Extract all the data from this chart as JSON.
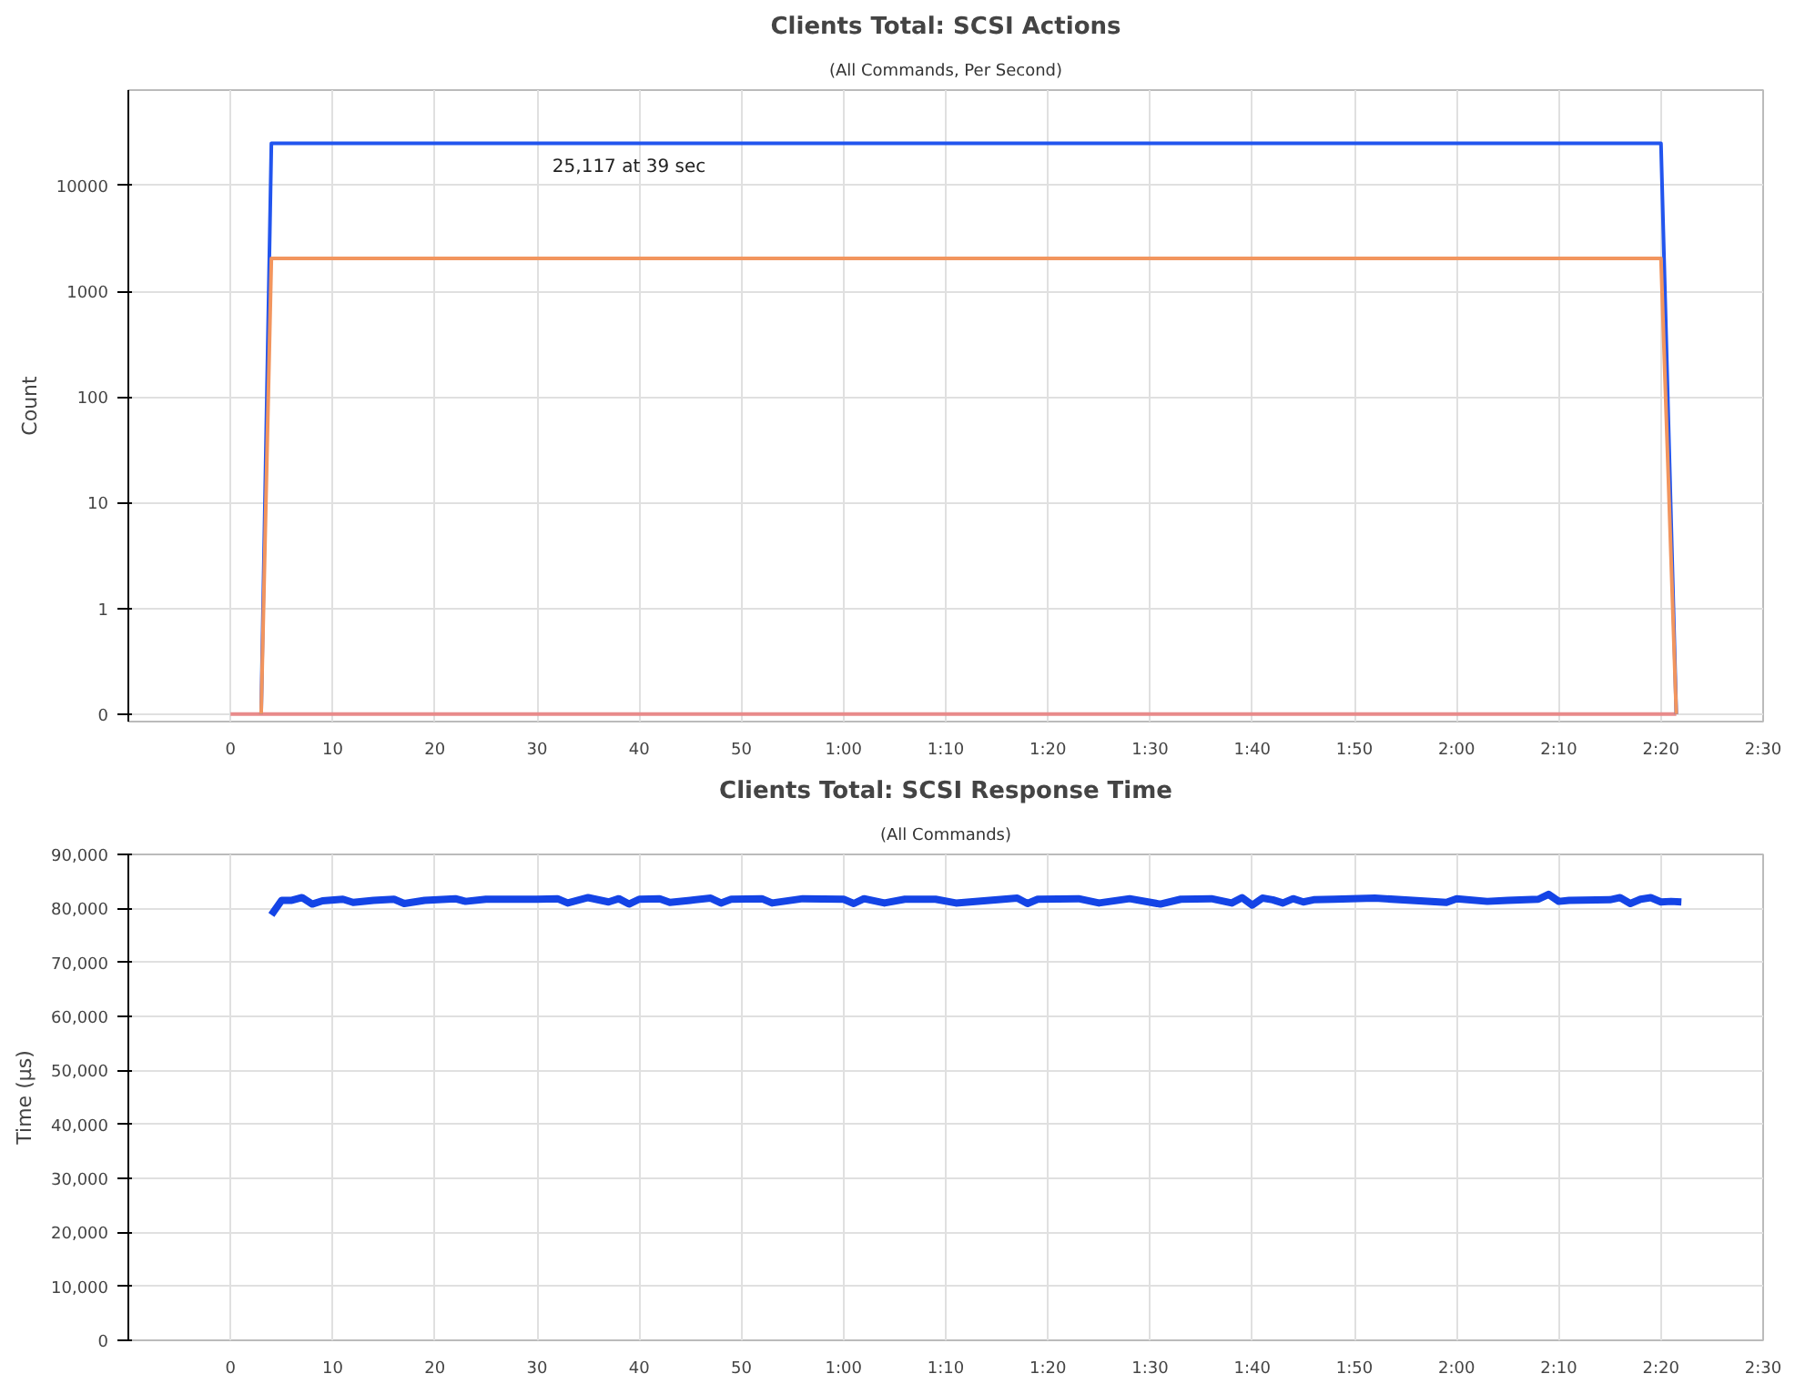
{
  "chart_data": [
    {
      "type": "line",
      "title": "Clients Total: SCSI Actions",
      "subtitle": "(All Commands, Per Second)",
      "ylabel": "Count",
      "log": true,
      "xlim": [
        -10,
        150
      ],
      "xticks": [
        0,
        10,
        20,
        30,
        40,
        50,
        {
          "value": 60,
          "label": "1:00"
        },
        {
          "value": 70,
          "label": "1:10"
        },
        {
          "value": 80,
          "label": "1:20"
        },
        {
          "value": 90,
          "label": "1:30"
        },
        {
          "value": 100,
          "label": "1:40"
        },
        {
          "value": 110,
          "label": "1:50"
        },
        {
          "value": 120,
          "label": "2:00"
        },
        {
          "value": 130,
          "label": "2:10"
        },
        {
          "value": 140,
          "label": "2:20"
        },
        {
          "value": 150,
          "label": "2:30"
        }
      ],
      "ylim": [
        0.085,
        80000
      ],
      "yticks": [
        {
          "value": 0.1,
          "label": "0"
        },
        1,
        10,
        100,
        1000,
        10000
      ],
      "grid": true,
      "annotations": [
        {
          "text": "25,117 at 39 sec",
          "x": 39,
          "y": 25117
        }
      ],
      "series": [
        {
          "color": "#e88a8a",
          "x": [
            0,
            141.5
          ],
          "values": [
            0.1,
            0.1
          ]
        },
        {
          "color": "#2255ee",
          "x": [
            3,
            4,
            140,
            141.5
          ],
          "values": [
            0.1,
            25117,
            25117,
            0.1
          ]
        },
        {
          "color": "#f2955e",
          "x": [
            3,
            4,
            140,
            141.5
          ],
          "values": [
            0.1,
            2050,
            2050,
            0.1
          ]
        }
      ]
    },
    {
      "type": "line",
      "title": "Clients Total: SCSI Response Time",
      "subtitle": "(All Commands)",
      "ylabel": "Time (µs)",
      "xlim": [
        -10,
        150
      ],
      "xticks": [
        0,
        10,
        20,
        30,
        40,
        50,
        {
          "value": 60,
          "label": "1:00"
        },
        {
          "value": 70,
          "label": "1:10"
        },
        {
          "value": 80,
          "label": "1:20"
        },
        {
          "value": 90,
          "label": "1:30"
        },
        {
          "value": 100,
          "label": "1:40"
        },
        {
          "value": 110,
          "label": "1:50"
        },
        {
          "value": 120,
          "label": "2:00"
        },
        {
          "value": 130,
          "label": "2:10"
        },
        {
          "value": 140,
          "label": "2:20"
        },
        {
          "value": 150,
          "label": "2:30"
        }
      ],
      "ylim": [
        0,
        90000
      ],
      "yticks": [
        0,
        {
          "value": 10000,
          "label": "10,000"
        },
        {
          "value": 20000,
          "label": "20,000"
        },
        {
          "value": 30000,
          "label": "30,000"
        },
        {
          "value": 40000,
          "label": "40,000"
        },
        {
          "value": 50000,
          "label": "50,000"
        },
        {
          "value": 60000,
          "label": "60,000"
        },
        {
          "value": 70000,
          "label": "70,000"
        },
        {
          "value": 80000,
          "label": "80,000"
        },
        {
          "value": 90000,
          "label": "90,000"
        }
      ],
      "grid": true,
      "series": [
        {
          "color": "#1444e6",
          "x": [
            4,
            5,
            6,
            7,
            8,
            9,
            11,
            12,
            14,
            16,
            17,
            19,
            22,
            23,
            25,
            30,
            32,
            33,
            35,
            37,
            38,
            39,
            40,
            42,
            43,
            45,
            47,
            48,
            49,
            52,
            53,
            56,
            60,
            61,
            62,
            64,
            66,
            69,
            71,
            77,
            78,
            79,
            83,
            85,
            88,
            91,
            93,
            96,
            98,
            99,
            100,
            101,
            102,
            103,
            104,
            105,
            106,
            108,
            112,
            119,
            120,
            123,
            125,
            128,
            129,
            130,
            131,
            135,
            136,
            137,
            138,
            139,
            140,
            141,
            142
          ],
          "values": [
            78800,
            81500,
            81500,
            82000,
            80800,
            81400,
            81700,
            81100,
            81500,
            81700,
            80900,
            81500,
            81800,
            81300,
            81700,
            81700,
            81800,
            81000,
            82000,
            81200,
            81800,
            80800,
            81700,
            81800,
            81100,
            81500,
            81900,
            81000,
            81700,
            81800,
            81000,
            81800,
            81700,
            80900,
            81800,
            81000,
            81700,
            81700,
            81000,
            81900,
            80900,
            81700,
            81800,
            81000,
            81800,
            80800,
            81700,
            81800,
            81000,
            82000,
            80600,
            81900,
            81600,
            81000,
            81800,
            81200,
            81600,
            81700,
            81900,
            81100,
            81800,
            81300,
            81500,
            81700,
            82600,
            81300,
            81500,
            81600,
            82000,
            80900,
            81700,
            82000,
            81200,
            81300,
            81200
          ]
        }
      ]
    }
  ]
}
